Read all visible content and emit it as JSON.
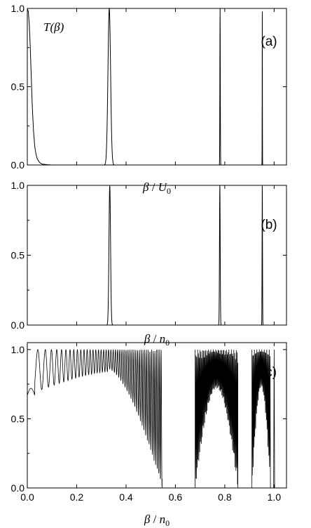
{
  "figure": {
    "description_free": true
  },
  "chart_data": [
    {
      "type": "line",
      "panel_label": "(a)",
      "ylabel_parts": {
        "base": "T(",
        "var": "β",
        "close": ")"
      },
      "xlabel_parts": {
        "var": "β",
        "slash": " / ",
        "den": "U",
        "sub": "0"
      },
      "ylim": [
        0.0,
        1.0
      ],
      "xlim": [
        0.0,
        1.05
      ],
      "yticks": [
        "0.0",
        "0.5",
        "1.0"
      ],
      "yticks_values": [
        0.0,
        0.5,
        1.0
      ],
      "series": [
        {
          "x": [
            0.0,
            0.004,
            0.008,
            0.012,
            0.016,
            0.02,
            0.025,
            0.03,
            0.035,
            0.04,
            0.05,
            0.06,
            0.08,
            0.1,
            0.15
          ],
          "y": [
            1.0,
            0.98,
            0.9,
            0.75,
            0.56,
            0.38,
            0.22,
            0.12,
            0.07,
            0.04,
            0.015,
            0.006,
            0.002,
            0.0,
            0.0
          ]
        }
      ],
      "peaks": [
        {
          "center": 0.332,
          "height": 1.0,
          "width": 0.0075
        },
        {
          "center": 0.781,
          "height": 1.0,
          "width": 0.0012
        },
        {
          "center": 0.952,
          "height": 0.98,
          "width": 0.0006
        }
      ]
    },
    {
      "type": "line",
      "panel_label": "(b)",
      "xlabel_parts": {
        "var": "β",
        "slash": " / ",
        "den": "n",
        "sub": "0"
      },
      "ylim": [
        0.0,
        1.0
      ],
      "xlim": [
        0.0,
        1.05
      ],
      "yticks": [
        "0.0",
        "0.5",
        "1.0"
      ],
      "yticks_values": [
        0.0,
        0.5,
        1.0
      ],
      "peaks": [
        {
          "center": 0.334,
          "height": 1.0,
          "width": 0.0045
        },
        {
          "center": 0.78,
          "height": 1.0,
          "width": 0.002
        },
        {
          "center": 0.952,
          "height": 1.0,
          "width": 0.0012
        }
      ]
    },
    {
      "type": "line",
      "panel_label": "(c)",
      "xlabel_parts": {
        "var": "β",
        "slash": " / ",
        "den": "n",
        "sub": "0"
      },
      "ylim": [
        0.0,
        1.05
      ],
      "xlim": [
        0.0,
        1.05
      ],
      "yticks": [
        "0.0",
        "0.5",
        "1.0"
      ],
      "yticks_values": [
        0.0,
        0.5,
        1.0
      ],
      "xticks": [
        "0.0",
        "0.2",
        "0.4",
        "0.6",
        "0.8",
        "1.0"
      ],
      "xticks_values": [
        0.0,
        0.2,
        0.4,
        0.6,
        0.8,
        1.0
      ],
      "bands": [
        {
          "start": 0.0,
          "end": 0.546,
          "floor_start": 0.67,
          "floor_end": 0.0
        },
        {
          "start": 0.68,
          "end": 0.853,
          "floor_start": 0.0,
          "floor_end": 0.0,
          "floor_mid": 0.72
        },
        {
          "start": 0.91,
          "end": 0.985,
          "floor_start": 0.0,
          "floor_end": 0.0,
          "floor_mid": 0.73
        }
      ],
      "spike_at": [
        1.0
      ]
    }
  ]
}
